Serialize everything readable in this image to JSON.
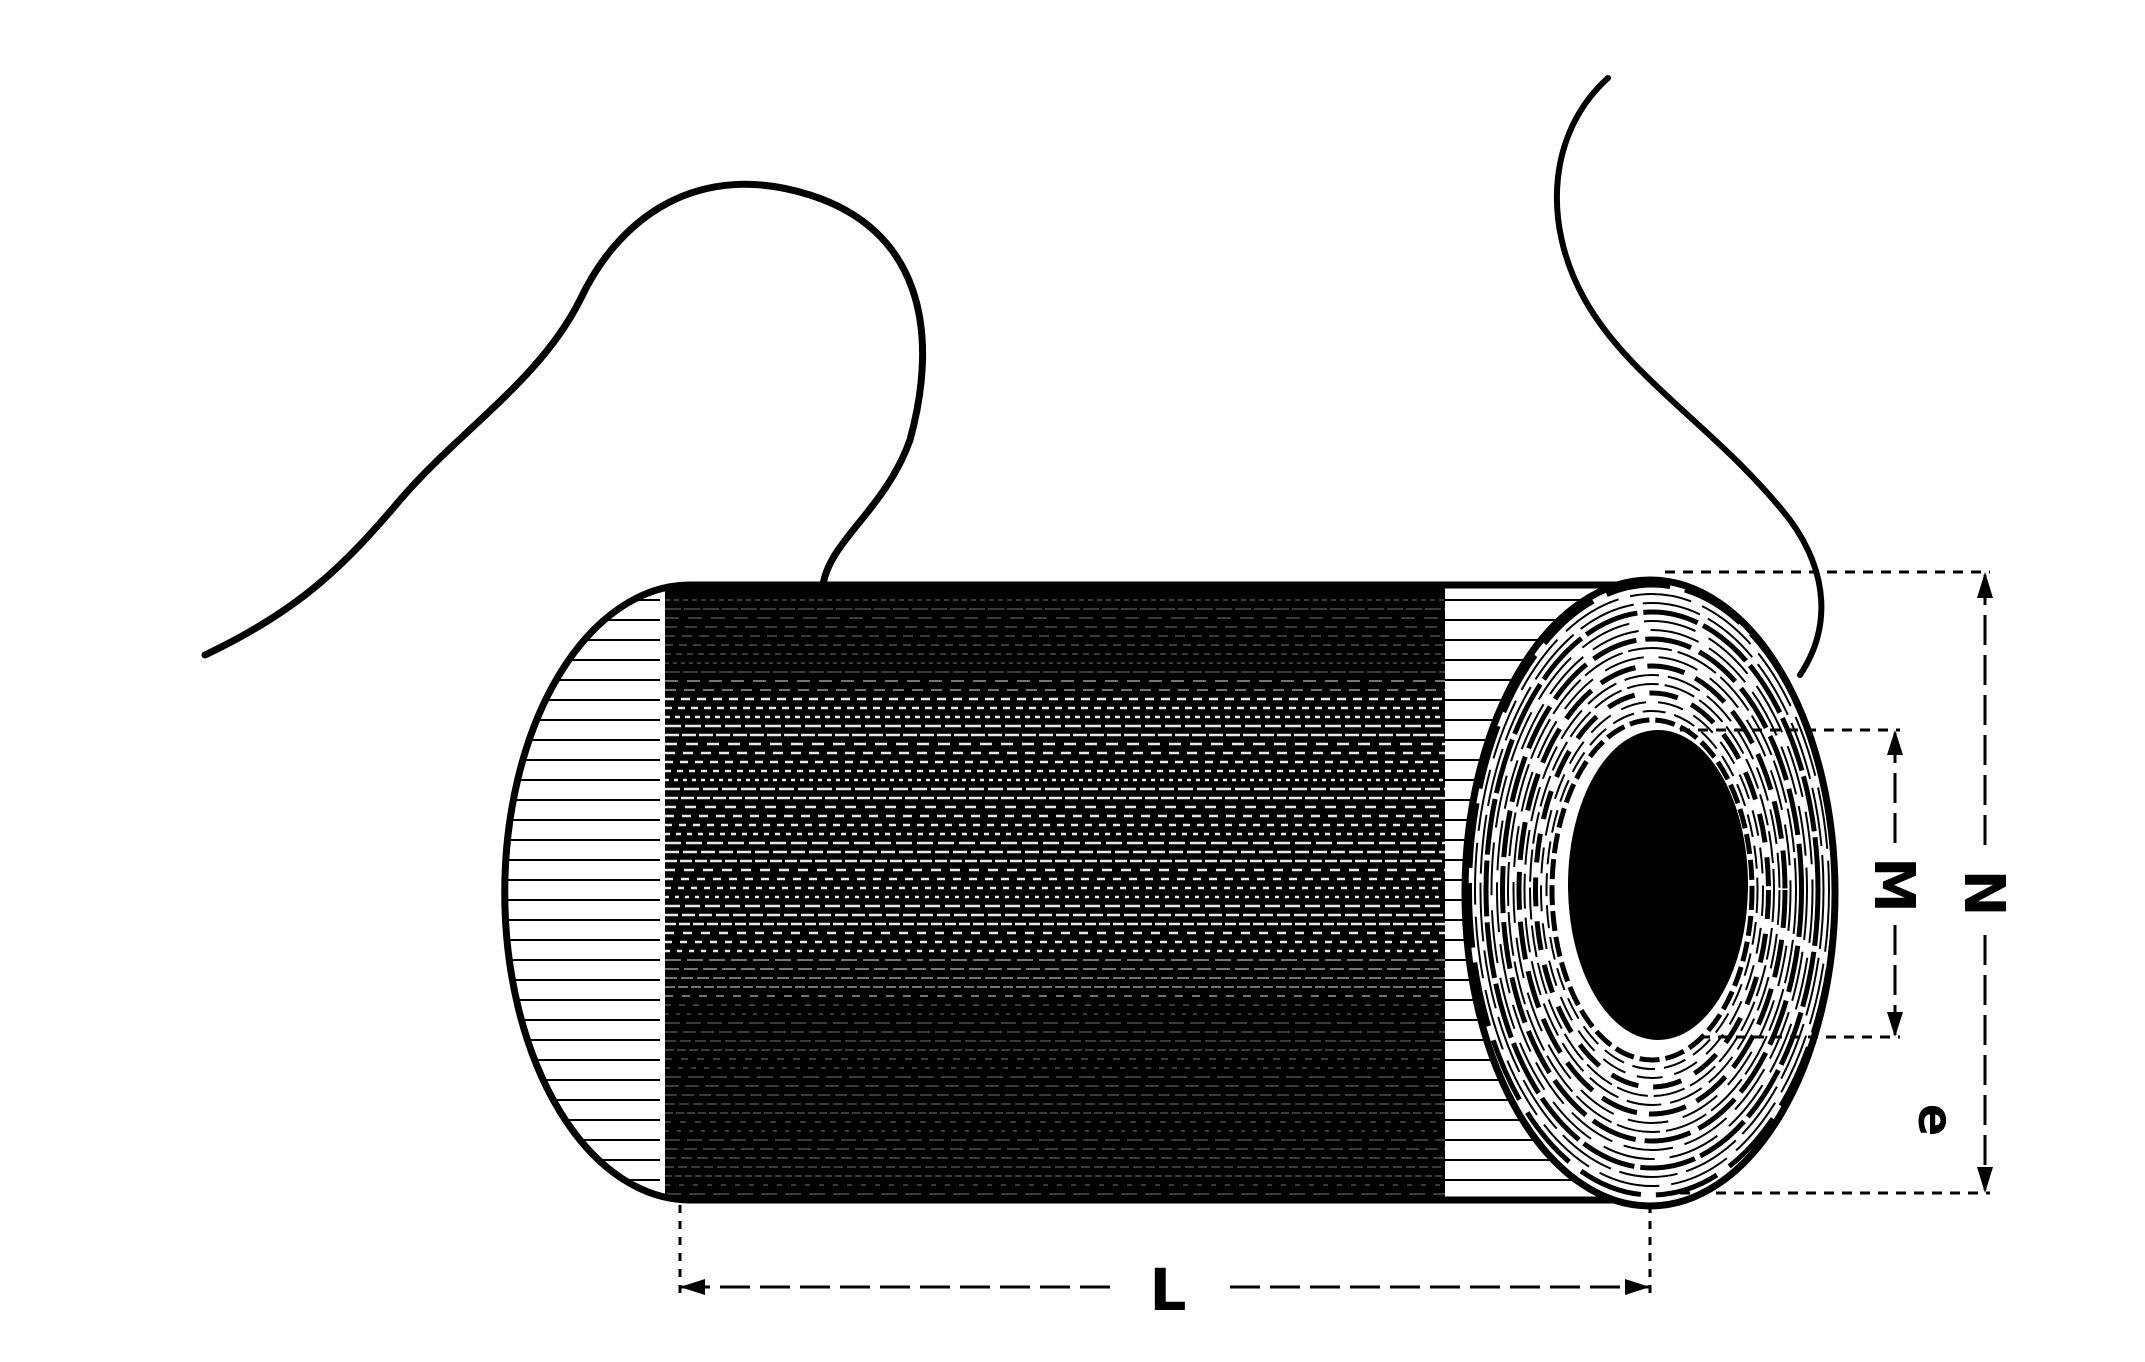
{
  "figure": {
    "labels": {
      "length": "L",
      "inner_diameter": "M",
      "outer_diameter": "N",
      "winding_depth": "e"
    },
    "colors": {
      "ink": "#000000",
      "paper": "#ffffff"
    }
  }
}
